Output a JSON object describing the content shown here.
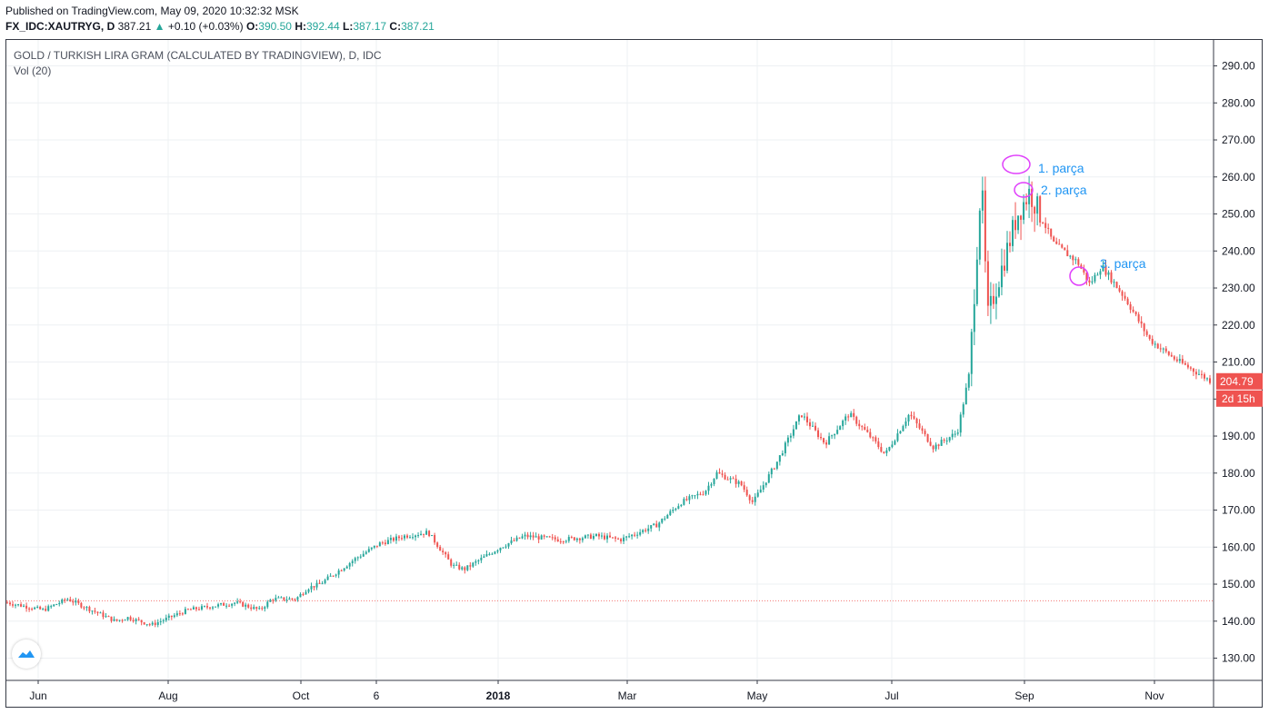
{
  "header": {
    "published": "Published on TradingView.com, May 09, 2020 10:32:32 MSK",
    "symbol": "FX_IDC:XAUTRYG, D",
    "price": "387.21",
    "arrow": "▲",
    "change": "+0.10 (+0.03%)",
    "o_label": "O:",
    "o_value": "390.50",
    "h_label": "H:",
    "h_value": "392.44",
    "l_label": "L:",
    "l_value": "387.17",
    "c_label": "C:",
    "c_value": "387.21"
  },
  "legend": {
    "title": "GOLD / TURKISH LIRA GRAM (CALCULATED BY TRADINGVIEW), D, IDC",
    "volume": "Vol (20)"
  },
  "logo_icon": "tradingview-cloud-icon",
  "colors": {
    "up": "#26a69a",
    "down": "#ef5350",
    "annotation_text": "#2196f3",
    "annotation_circle": "#e040fb",
    "grid": "#eef0f3",
    "axis": "#363a45",
    "price_line": "#ef5350"
  },
  "chart_data": {
    "type": "candlestick",
    "title": "GOLD / TURKISH LIRA GRAM (CALCULATED BY TRADINGVIEW), D, IDC",
    "x_tick_labels": [
      "Jun",
      "Aug",
      "Oct",
      "6",
      "2018",
      "Mar",
      "May",
      "Jul",
      "Sep",
      "Nov"
    ],
    "y_tick_labels": [
      "130.00",
      "140.00",
      "150.00",
      "160.00",
      "170.00",
      "180.00",
      "190.00",
      "200.00",
      "210.00",
      "220.00",
      "230.00",
      "240.00",
      "250.00",
      "260.00",
      "270.00",
      "280.00",
      "290.00"
    ],
    "ylim": [
      124,
      297
    ],
    "last_price": "204.79",
    "countdown": "2d 15h",
    "reference_line": 145.5,
    "grid": true,
    "series_path": [
      [
        0,
        145
      ],
      [
        0.03,
        143
      ],
      [
        0.05,
        146
      ],
      [
        0.09,
        140
      ],
      [
        0.1,
        141
      ],
      [
        0.12,
        139
      ],
      [
        0.15,
        143
      ],
      [
        0.19,
        145
      ],
      [
        0.21,
        143
      ],
      [
        0.22,
        146
      ],
      [
        0.24,
        146
      ],
      [
        0.25,
        149
      ],
      [
        0.26,
        150
      ],
      [
        0.29,
        157
      ],
      [
        0.31,
        161
      ],
      [
        0.33,
        163
      ],
      [
        0.35,
        164
      ],
      [
        0.37,
        155
      ],
      [
        0.38,
        154
      ],
      [
        0.41,
        160
      ],
      [
        0.43,
        163
      ],
      [
        0.46,
        162
      ],
      [
        0.49,
        163
      ],
      [
        0.51,
        162
      ],
      [
        0.54,
        166
      ],
      [
        0.56,
        172
      ],
      [
        0.58,
        175
      ],
      [
        0.59,
        180
      ],
      [
        0.61,
        177
      ],
      [
        0.62,
        172
      ],
      [
        0.64,
        183
      ],
      [
        0.66,
        196
      ],
      [
        0.68,
        188
      ],
      [
        0.7,
        196
      ],
      [
        0.72,
        189
      ],
      [
        0.73,
        185
      ],
      [
        0.75,
        196
      ],
      [
        0.77,
        187
      ],
      [
        0.79,
        191
      ],
      [
        0.8,
        207
      ],
      [
        0.81,
        260
      ],
      [
        0.815,
        222
      ],
      [
        0.84,
        250
      ],
      [
        0.85,
        256
      ],
      [
        0.87,
        242
      ],
      [
        0.89,
        237
      ],
      [
        0.9,
        231
      ],
      [
        0.91,
        236
      ],
      [
        0.93,
        227
      ],
      [
        0.95,
        216
      ],
      [
        0.97,
        211
      ],
      [
        1.0,
        205
      ]
    ],
    "annotations": [
      {
        "label": "1. parça",
        "value": 265
      },
      {
        "label": "2. parça",
        "value": 258
      },
      {
        "label": "3. parça",
        "value": 235
      }
    ]
  }
}
